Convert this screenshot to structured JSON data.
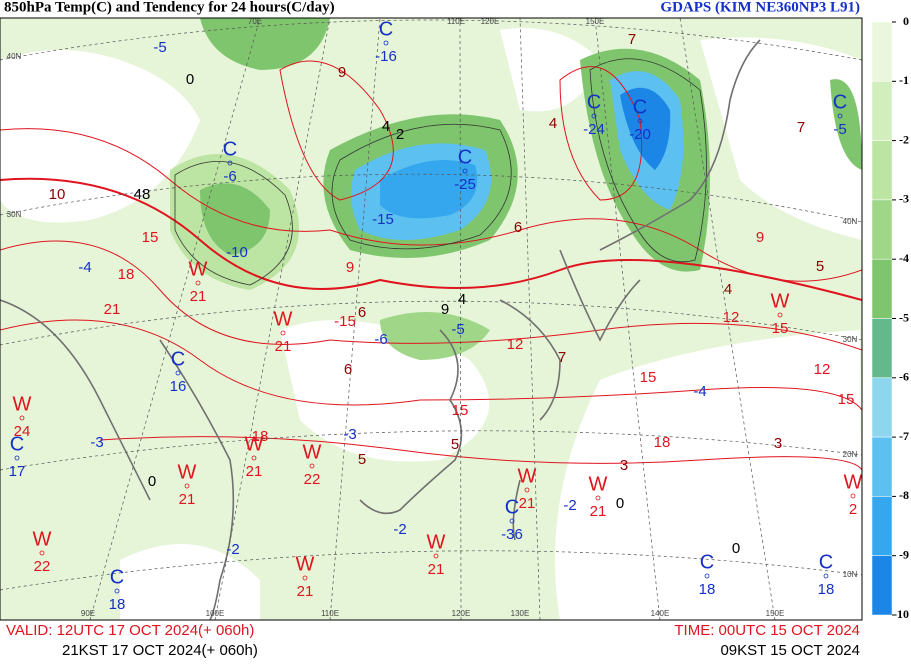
{
  "header": {
    "title": "850hPa Temp(C) and Tendency for 24 hours(C/day)",
    "model": "GDAPS (KIM NE360NP3 L91)"
  },
  "footer": {
    "valid_utc": "VALID: 12UTC 17 OCT 2024(+ 060h)",
    "valid_kst": "21KST 17 OCT 2024(+ 060h)",
    "time_utc": "TIME: 00UTC 15 OCT 2024",
    "time_kst": "09KST 15 OCT 2024"
  },
  "colorbar": {
    "ticks": [
      0,
      -1,
      -2,
      -3,
      -4,
      -5,
      -6,
      -7,
      -8,
      -9,
      -10
    ],
    "colors": [
      "#eaf7dc",
      "#d3eebd",
      "#bce4a2",
      "#9fd688",
      "#7fc56e",
      "#63b98c",
      "#8ed6ee",
      "#5cc1f1",
      "#35a7ee",
      "#1c86e6"
    ]
  },
  "symbol_colors": {
    "W": "#e0141e",
    "C": "#1530c8"
  },
  "centers": [
    {
      "symbol": "C",
      "value": -16
    },
    {
      "symbol": "C",
      "value": -6
    },
    {
      "symbol": "C",
      "value": -25
    },
    {
      "symbol": "C",
      "value": -24
    },
    {
      "symbol": "C",
      "value": -20
    },
    {
      "symbol": "C",
      "value": -5
    },
    {
      "symbol": "W",
      "value": 21
    },
    {
      "symbol": "W",
      "value": 21
    },
    {
      "symbol": "C",
      "value": 16
    },
    {
      "symbol": "W",
      "value": 24
    },
    {
      "symbol": "C",
      "value": 17
    },
    {
      "symbol": "W",
      "value": 15
    },
    {
      "symbol": "W",
      "value": 21
    },
    {
      "symbol": "W",
      "value": 22
    },
    {
      "symbol": "W",
      "value": 21
    },
    {
      "symbol": "W",
      "value": 21
    },
    {
      "symbol": "W",
      "value": 21
    },
    {
      "symbol": "W",
      "value": 21
    },
    {
      "symbol": "W",
      "value": 21
    },
    {
      "symbol": "C",
      "value": -36
    },
    {
      "symbol": "W",
      "value": 22
    },
    {
      "symbol": "C",
      "value": 18
    },
    {
      "symbol": "C",
      "value": 18
    },
    {
      "symbol": "C",
      "value": 18
    },
    {
      "symbol": "W",
      "value": 2
    }
  ],
  "contour_labels": [
    {
      "value": 0,
      "color": "#000"
    },
    {
      "value": 9,
      "color": "#8b0000"
    },
    {
      "value": 4,
      "color": "#000"
    },
    {
      "value": 2,
      "color": "#000"
    },
    {
      "value": 10,
      "color": "#8b0000"
    },
    {
      "value": 48,
      "color": "#000"
    },
    {
      "value": 15,
      "color": "#e0141e"
    },
    {
      "value": 18,
      "color": "#e0141e"
    },
    {
      "value": 21,
      "color": "#e0141e"
    },
    {
      "value": -4,
      "color": "#1530c8"
    },
    {
      "value": -10,
      "color": "#1530c8"
    },
    {
      "value": -15,
      "color": "#1530c8"
    },
    {
      "value": 9,
      "color": "#e0141e"
    },
    {
      "value": 4,
      "color": "#000"
    },
    {
      "value": 9,
      "color": "#000"
    },
    {
      "value": -5,
      "color": "#1530c8"
    },
    {
      "value": -6,
      "color": "#1530c8"
    },
    {
      "value": 6,
      "color": "#8b0000"
    },
    {
      "value": 6,
      "color": "#8b0000"
    },
    {
      "value": 12,
      "color": "#e0141e"
    },
    {
      "value": 7,
      "color": "#8b0000"
    },
    {
      "value": 15,
      "color": "#e0141e"
    },
    {
      "value": -4,
      "color": "#1530c8"
    },
    {
      "value": 3,
      "color": "#8b0000"
    },
    {
      "value": 18,
      "color": "#e0141e"
    },
    {
      "value": 3,
      "color": "#8b0000"
    },
    {
      "value": 12,
      "color": "#e0141e"
    },
    {
      "value": 15,
      "color": "#e0141e"
    },
    {
      "value": 12,
      "color": "#e0141e"
    },
    {
      "value": 9,
      "color": "#e0141e"
    },
    {
      "value": 5,
      "color": "#8b0000"
    },
    {
      "value": 4,
      "color": "#8b0000"
    },
    {
      "value": 6,
      "color": "#8b0000"
    },
    {
      "value": 4,
      "color": "#8b0000"
    },
    {
      "value": 7,
      "color": "#8b0000"
    },
    {
      "value": 7,
      "color": "#8b0000"
    },
    {
      "value": -5,
      "color": "#1530c8"
    },
    {
      "value": -3,
      "color": "#1530c8"
    },
    {
      "value": -3,
      "color": "#1530c8"
    },
    {
      "value": 5,
      "color": "#8b0000"
    },
    {
      "value": 5,
      "color": "#8b0000"
    },
    {
      "value": -2,
      "color": "#1530c8"
    },
    {
      "value": -2,
      "color": "#1530c8"
    },
    {
      "value": -2,
      "color": "#1530c8"
    },
    {
      "value": 0,
      "color": "#000"
    },
    {
      "value": 0,
      "color": "#000"
    },
    {
      "value": 0,
      "color": "#000"
    },
    {
      "value": 15,
      "color": "#e0141e"
    },
    {
      "value": 18,
      "color": "#e0141e"
    },
    {
      "value": -15,
      "color": "#e0141e"
    }
  ],
  "grid_labels": [
    "40N",
    "30N",
    "90E",
    "100E",
    "110E",
    "120E",
    "130E",
    "140E",
    "150E",
    "40N",
    "30N",
    "20N",
    "10N",
    "70E",
    "110E",
    "120E",
    "150E"
  ]
}
